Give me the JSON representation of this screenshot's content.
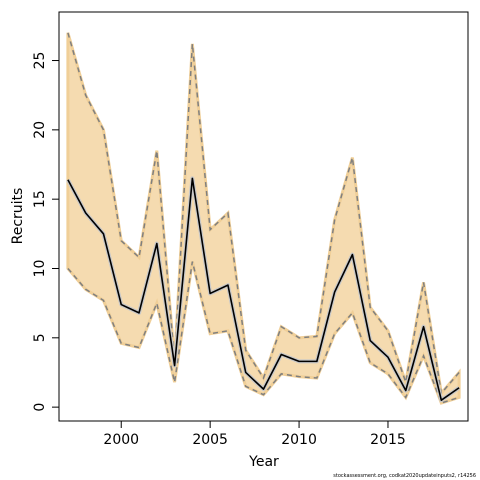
{
  "chart_data": {
    "type": "line",
    "title": "",
    "xlabel": "Year",
    "ylabel": "Recruits",
    "xlim": [
      1996.5,
      2019.5
    ],
    "ylim": [
      -1,
      28.5
    ],
    "x_ticks": [
      2000,
      2005,
      2010,
      2015
    ],
    "y_ticks": [
      0,
      5,
      10,
      15,
      20,
      25
    ],
    "grid": false,
    "legend": "none",
    "x": [
      1997,
      1998,
      1999,
      2000,
      2001,
      2002,
      2003,
      2004,
      2005,
      2006,
      2007,
      2008,
      2009,
      2010,
      2011,
      2012,
      2013,
      2014,
      2015,
      2016,
      2017,
      2018,
      2019
    ],
    "series": [
      {
        "role": "estimate",
        "color": "#000000",
        "values": [
          16.4,
          14.0,
          12.5,
          7.4,
          6.8,
          11.8,
          3.0,
          16.5,
          8.2,
          8.8,
          2.5,
          1.3,
          3.8,
          3.3,
          3.3,
          8.3,
          11.0,
          4.8,
          3.6,
          1.2,
          5.8,
          0.5,
          1.4
        ]
      },
      {
        "role": "upper",
        "color": "#7f7f7f",
        "values": [
          27.0,
          22.5,
          20.0,
          12.0,
          10.8,
          18.5,
          3.3,
          26.2,
          12.8,
          14.0,
          4.1,
          2.1,
          5.8,
          5.0,
          5.1,
          13.5,
          18.0,
          7.2,
          5.5,
          1.8,
          9.0,
          1.0,
          2.5
        ]
      },
      {
        "role": "lower",
        "color": "#7f7f7f",
        "values": [
          10.0,
          8.5,
          7.7,
          4.6,
          4.3,
          7.5,
          1.8,
          10.5,
          5.3,
          5.5,
          1.5,
          0.9,
          2.4,
          2.2,
          2.1,
          5.3,
          6.8,
          3.2,
          2.4,
          0.7,
          3.7,
          0.3,
          0.7
        ]
      }
    ],
    "band_color": "#f5dbb0",
    "band_edge_color": "#f0cf98"
  },
  "footer": {
    "source_note": "stockassessment.org, codkat2020updateinputs2, r14256"
  }
}
